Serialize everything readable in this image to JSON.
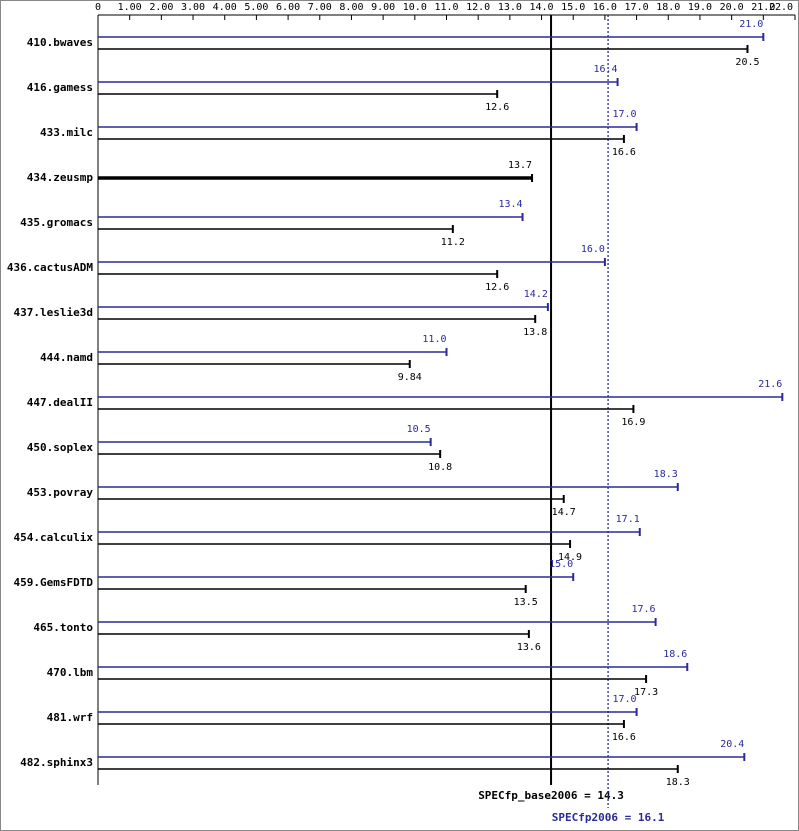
{
  "chart_data": {
    "type": "bar",
    "orientation": "horizontal",
    "categories": [
      "410.bwaves",
      "416.gamess",
      "433.milc",
      "434.zeusmp",
      "435.gromacs",
      "436.cactusADM",
      "437.leslie3d",
      "444.namd",
      "447.dealII",
      "450.soplex",
      "453.povray",
      "454.calculix",
      "459.GemsFDTD",
      "465.tonto",
      "470.lbm",
      "481.wrf",
      "482.sphinx3"
    ],
    "series": [
      {
        "color": "#2a2a9a",
        "values": [
          21.0,
          16.4,
          17.0,
          null,
          13.4,
          16.0,
          14.2,
          11.0,
          21.6,
          10.5,
          18.3,
          17.1,
          15.0,
          17.6,
          18.6,
          17.0,
          20.4
        ],
        "value_labels": [
          "21.0",
          "16.4",
          "17.0",
          null,
          "13.4",
          "16.0",
          "14.2",
          "11.0",
          "21.6",
          "10.5",
          "18.3",
          "17.1",
          "15.0",
          "17.6",
          "18.6",
          "17.0",
          "20.4"
        ]
      },
      {
        "color": "#000000",
        "values": [
          20.5,
          12.6,
          16.6,
          13.7,
          11.2,
          12.6,
          13.8,
          9.84,
          16.9,
          10.8,
          14.7,
          14.9,
          13.5,
          13.6,
          17.3,
          16.6,
          18.3
        ],
        "value_labels": [
          "20.5",
          "12.6",
          "16.6",
          "13.7",
          "11.2",
          "12.6",
          "13.8",
          "9.84",
          "16.9",
          "10.8",
          "14.7",
          "14.9",
          "13.5",
          "13.6",
          "17.3",
          "16.6",
          "18.3"
        ]
      }
    ],
    "xlim": [
      0,
      22
    ],
    "xticks": [
      0,
      {
        "value": 1,
        "label": "1.00"
      },
      {
        "value": 2,
        "label": "2.00"
      },
      {
        "value": 3,
        "label": "3.00"
      },
      {
        "value": 4,
        "label": "4.00"
      },
      {
        "value": 5,
        "label": "5.00"
      },
      {
        "value": 6,
        "label": "6.00"
      },
      {
        "value": 7,
        "label": "7.00"
      },
      {
        "value": 8,
        "label": "8.00"
      },
      {
        "value": 9,
        "label": "9.00"
      },
      {
        "value": 10,
        "label": "10.0"
      },
      {
        "value": 11,
        "label": "11.0"
      },
      {
        "value": 12,
        "label": "12.0"
      },
      {
        "value": 13,
        "label": "13.0"
      },
      {
        "value": 14,
        "label": "14.0"
      },
      {
        "value": 15,
        "label": "15.0"
      },
      {
        "value": 16,
        "label": "16.0"
      },
      {
        "value": 17,
        "label": "17.0"
      },
      {
        "value": 18,
        "label": "18.0"
      },
      {
        "value": 19,
        "label": "19.0"
      },
      {
        "value": 20,
        "label": "20.0"
      },
      {
        "value": 21,
        "label": "21.0"
      },
      {
        "value": 22,
        "label": "22.0"
      }
    ],
    "reference_lines": [
      {
        "label": "SPECfp_base2006 = 14.3",
        "value": 14.3,
        "color": "#000000",
        "style": "solid"
      },
      {
        "label": "SPECfp2006 = 16.1",
        "value": 16.1,
        "color": "#2a2a9a",
        "style": "dotted"
      }
    ]
  }
}
